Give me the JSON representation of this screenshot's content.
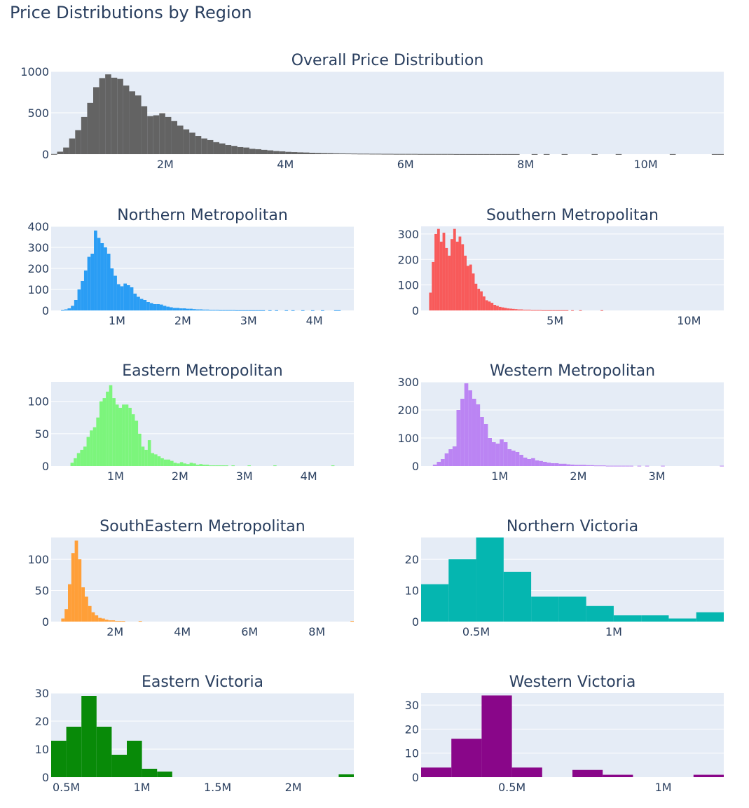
{
  "figure": {
    "title": "Price Distributions by Region",
    "colors": {
      "plot_bg": "#e5ecf6",
      "grid": "#ffffff",
      "text": "#2a3f5f"
    }
  },
  "chart_data": [
    {
      "type": "histogram",
      "title": "Overall Price Distribution",
      "color": "#636363",
      "x_unit": "price",
      "bin_width": 100000,
      "bin_start": 100000,
      "xlim": [
        100000,
        11300000
      ],
      "ylim": [
        0,
        1000
      ],
      "xticks": [
        {
          "value": 2000000,
          "label": "2M"
        },
        {
          "value": 4000000,
          "label": "4M"
        },
        {
          "value": 6000000,
          "label": "6M"
        },
        {
          "value": 8000000,
          "label": "8M"
        },
        {
          "value": 10000000,
          "label": "10M"
        }
      ],
      "yticks": [
        {
          "value": 0,
          "label": "0"
        },
        {
          "value": 500,
          "label": "500"
        },
        {
          "value": 1000,
          "label": "1000"
        }
      ],
      "counts": [
        2,
        30,
        80,
        190,
        290,
        450,
        620,
        810,
        920,
        965,
        925,
        910,
        830,
        760,
        710,
        580,
        460,
        470,
        495,
        450,
        400,
        345,
        300,
        260,
        220,
        190,
        170,
        145,
        130,
        110,
        100,
        85,
        80,
        65,
        60,
        52,
        46,
        38,
        34,
        28,
        25,
        22,
        20,
        17,
        15,
        13,
        12,
        10,
        9,
        8,
        7,
        6,
        6,
        5,
        5,
        4,
        4,
        3,
        3,
        3,
        3,
        2,
        2,
        2,
        2,
        2,
        2,
        1,
        1,
        1,
        1,
        1,
        1,
        1,
        1,
        1,
        1,
        1,
        0,
        0,
        1,
        0,
        1,
        0,
        0,
        1,
        0,
        0,
        0,
        0,
        1,
        0,
        0,
        0,
        1,
        0,
        0,
        0,
        0,
        0,
        0,
        0,
        0,
        1,
        0,
        0,
        0,
        0,
        0,
        0,
        1,
        1
      ]
    },
    {
      "type": "histogram",
      "title": "Northern Metropolitan",
      "color": "#2a9df4",
      "x_unit": "price",
      "bin_width": 50000,
      "bin_start": 150000,
      "xlim": [
        0,
        4600000
      ],
      "ylim": [
        0,
        400
      ],
      "xticks": [
        {
          "value": 1000000,
          "label": "1M"
        },
        {
          "value": 2000000,
          "label": "2M"
        },
        {
          "value": 3000000,
          "label": "3M"
        },
        {
          "value": 4000000,
          "label": "4M"
        }
      ],
      "yticks": [
        {
          "value": 0,
          "label": "0"
        },
        {
          "value": 100,
          "label": "100"
        },
        {
          "value": 200,
          "label": "200"
        },
        {
          "value": 300,
          "label": "300"
        },
        {
          "value": 400,
          "label": "400"
        }
      ],
      "counts": [
        2,
        5,
        10,
        22,
        50,
        100,
        140,
        190,
        255,
        270,
        380,
        345,
        320,
        300,
        270,
        200,
        165,
        125,
        115,
        128,
        120,
        110,
        80,
        65,
        55,
        50,
        40,
        35,
        30,
        30,
        28,
        22,
        18,
        15,
        12,
        12,
        10,
        10,
        8,
        8,
        6,
        5,
        5,
        4,
        4,
        3,
        3,
        3,
        2,
        2,
        2,
        2,
        2,
        1,
        1,
        1,
        1,
        1,
        1,
        1,
        1,
        1,
        0,
        1,
        0,
        1,
        0,
        0,
        1,
        0,
        1,
        0,
        0,
        1,
        0,
        0,
        1,
        0,
        0,
        1,
        0,
        0,
        0,
        1,
        1
      ]
    },
    {
      "type": "histogram",
      "title": "Southern Metropolitan",
      "color": "#f85a5a",
      "x_unit": "price",
      "bin_width": 100000,
      "bin_start": 300000,
      "xlim": [
        0,
        11300000
      ],
      "ylim": [
        0,
        330
      ],
      "xticks": [
        {
          "value": 5000000,
          "label": "5M"
        },
        {
          "value": 10000000,
          "label": "10M"
        }
      ],
      "yticks": [
        {
          "value": 0,
          "label": "0"
        },
        {
          "value": 100,
          "label": "100"
        },
        {
          "value": 200,
          "label": "200"
        },
        {
          "value": 300,
          "label": "300"
        }
      ],
      "counts": [
        70,
        190,
        300,
        320,
        270,
        305,
        245,
        215,
        280,
        320,
        270,
        290,
        260,
        215,
        175,
        180,
        145,
        105,
        85,
        75,
        55,
        40,
        35,
        30,
        22,
        18,
        14,
        12,
        10,
        8,
        7,
        6,
        5,
        4,
        4,
        3,
        3,
        3,
        2,
        2,
        2,
        2,
        1,
        1,
        1,
        1,
        1,
        1,
        1,
        1,
        1,
        1,
        0,
        1,
        0,
        0,
        1,
        0,
        0,
        0,
        0,
        0,
        0,
        0,
        1,
        0,
        0,
        0,
        0,
        0,
        0,
        0,
        0,
        0,
        0,
        0,
        0,
        0,
        0,
        0,
        0,
        0,
        0,
        0,
        0,
        0,
        0,
        0,
        0,
        0,
        0,
        0,
        0,
        0,
        0,
        0,
        0,
        0,
        0,
        0,
        0,
        0,
        0,
        0,
        0,
        0,
        0,
        0,
        0,
        0,
        1
      ]
    },
    {
      "type": "histogram",
      "title": "Eastern Metropolitan",
      "color": "#7cf57c",
      "x_unit": "price",
      "bin_width": 50000,
      "bin_start": 300000,
      "xlim": [
        0,
        4700000
      ],
      "ylim": [
        0,
        130
      ],
      "xticks": [
        {
          "value": 1000000,
          "label": "1M"
        },
        {
          "value": 2000000,
          "label": "2M"
        },
        {
          "value": 3000000,
          "label": "3M"
        },
        {
          "value": 4000000,
          "label": "4M"
        }
      ],
      "yticks": [
        {
          "value": 0,
          "label": "0"
        },
        {
          "value": 50,
          "label": "50"
        },
        {
          "value": 100,
          "label": "100"
        }
      ],
      "counts": [
        5,
        12,
        20,
        25,
        30,
        45,
        55,
        60,
        75,
        100,
        105,
        115,
        125,
        105,
        95,
        90,
        95,
        95,
        90,
        80,
        70,
        50,
        30,
        25,
        40,
        20,
        18,
        15,
        12,
        10,
        10,
        8,
        5,
        4,
        6,
        4,
        3,
        5,
        4,
        2,
        3,
        2,
        2,
        1,
        1,
        1,
        1,
        1,
        1,
        0,
        1,
        0,
        0,
        0,
        0,
        1,
        0,
        0,
        0,
        0,
        0,
        0,
        0,
        1,
        0,
        0,
        0,
        0,
        0,
        0,
        0,
        0,
        0,
        0,
        0,
        0,
        0,
        0,
        0,
        0,
        0,
        1
      ]
    },
    {
      "type": "histogram",
      "title": "Western Metropolitan",
      "color": "#bb84f3",
      "x_unit": "price",
      "bin_width": 50000,
      "bin_start": 150000,
      "xlim": [
        0,
        3850000
      ],
      "ylim": [
        0,
        300
      ],
      "xticks": [
        {
          "value": 1000000,
          "label": "1M"
        },
        {
          "value": 2000000,
          "label": "2M"
        },
        {
          "value": 3000000,
          "label": "3M"
        }
      ],
      "yticks": [
        {
          "value": 0,
          "label": "0"
        },
        {
          "value": 100,
          "label": "100"
        },
        {
          "value": 200,
          "label": "200"
        },
        {
          "value": 300,
          "label": "300"
        }
      ],
      "counts": [
        5,
        15,
        25,
        45,
        60,
        70,
        200,
        240,
        295,
        270,
        240,
        220,
        175,
        150,
        100,
        85,
        80,
        95,
        85,
        60,
        55,
        50,
        40,
        30,
        25,
        28,
        20,
        18,
        15,
        12,
        10,
        10,
        8,
        8,
        6,
        5,
        4,
        4,
        4,
        3,
        3,
        2,
        2,
        2,
        1,
        1,
        1,
        1,
        1,
        1,
        1,
        0,
        1,
        0,
        1,
        0,
        0,
        0,
        1,
        0,
        0,
        0,
        0,
        0,
        0,
        0,
        0,
        0,
        0,
        0,
        0,
        0,
        0,
        1
      ]
    },
    {
      "type": "histogram",
      "title": "SouthEastern Metropolitan",
      "color": "#ff9f38",
      "x_unit": "price",
      "bin_width": 100000,
      "bin_start": 400000,
      "xlim": [
        100000,
        9100000
      ],
      "ylim": [
        0,
        135
      ],
      "xticks": [
        {
          "value": 2000000,
          "label": "2M"
        },
        {
          "value": 4000000,
          "label": "4M"
        },
        {
          "value": 6000000,
          "label": "6M"
        },
        {
          "value": 8000000,
          "label": "8M"
        }
      ],
      "yticks": [
        {
          "value": 0,
          "label": "0"
        },
        {
          "value": 50,
          "label": "50"
        },
        {
          "value": 100,
          "label": "100"
        }
      ],
      "counts": [
        5,
        20,
        60,
        110,
        130,
        100,
        55,
        40,
        25,
        15,
        10,
        6,
        5,
        3,
        2,
        2,
        1,
        1,
        1,
        0,
        0,
        0,
        0,
        1,
        0,
        0,
        0,
        0,
        0,
        0,
        0,
        0,
        0,
        0,
        0,
        0,
        0,
        0,
        0,
        0,
        0,
        0,
        0,
        0,
        0,
        0,
        0,
        0,
        0,
        0,
        0,
        0,
        0,
        0,
        0,
        0,
        0,
        0,
        0,
        0,
        0,
        0,
        0,
        0,
        0,
        0,
        0,
        0,
        0,
        0,
        0,
        0,
        0,
        0,
        0,
        0,
        0,
        0,
        0,
        0,
        0,
        0,
        0,
        0,
        0,
        0,
        1
      ]
    },
    {
      "type": "histogram",
      "title": "Northern Victoria",
      "color": "#05b6b0",
      "x_unit": "price",
      "bin_width": 100000,
      "bin_start": 300000,
      "xlim": [
        300000,
        1400000
      ],
      "ylim": [
        0,
        27
      ],
      "xticks": [
        {
          "value": 500000,
          "label": "0.5M"
        },
        {
          "value": 1000000,
          "label": "1M"
        }
      ],
      "yticks": [
        {
          "value": 0,
          "label": "0"
        },
        {
          "value": 10,
          "label": "10"
        },
        {
          "value": 20,
          "label": "20"
        }
      ],
      "counts": [
        12,
        20,
        27,
        16,
        8,
        8,
        5,
        2,
        2,
        1,
        3
      ]
    },
    {
      "type": "histogram",
      "title": "Eastern Victoria",
      "color": "#088a08",
      "x_unit": "price",
      "bin_width": 100000,
      "bin_start": 400000,
      "xlim": [
        400000,
        2400000
      ],
      "ylim": [
        0,
        30
      ],
      "xticks": [
        {
          "value": 500000,
          "label": "0.5M"
        },
        {
          "value": 1000000,
          "label": "1M"
        },
        {
          "value": 1500000,
          "label": "1.5M"
        },
        {
          "value": 2000000,
          "label": "2M"
        }
      ],
      "yticks": [
        {
          "value": 0,
          "label": "0"
        },
        {
          "value": 10,
          "label": "10"
        },
        {
          "value": 20,
          "label": "20"
        },
        {
          "value": 30,
          "label": "30"
        }
      ],
      "counts": [
        13,
        18,
        29,
        18,
        8,
        13,
        3,
        2,
        0,
        0,
        0,
        0,
        0,
        0,
        0,
        0,
        0,
        0,
        0,
        1
      ]
    },
    {
      "type": "histogram",
      "title": "Western Victoria",
      "color": "#890689",
      "x_unit": "price",
      "bin_width": 100000,
      "bin_start": 200000,
      "xlim": [
        200000,
        1200000
      ],
      "ylim": [
        0,
        35
      ],
      "xticks": [
        {
          "value": 500000,
          "label": "0.5M"
        },
        {
          "value": 1000000,
          "label": "1M"
        }
      ],
      "yticks": [
        {
          "value": 0,
          "label": "0"
        },
        {
          "value": 10,
          "label": "10"
        },
        {
          "value": 20,
          "label": "20"
        },
        {
          "value": 30,
          "label": "30"
        }
      ],
      "counts": [
        4,
        16,
        34,
        4,
        0,
        3,
        1,
        0,
        0,
        1
      ]
    }
  ]
}
